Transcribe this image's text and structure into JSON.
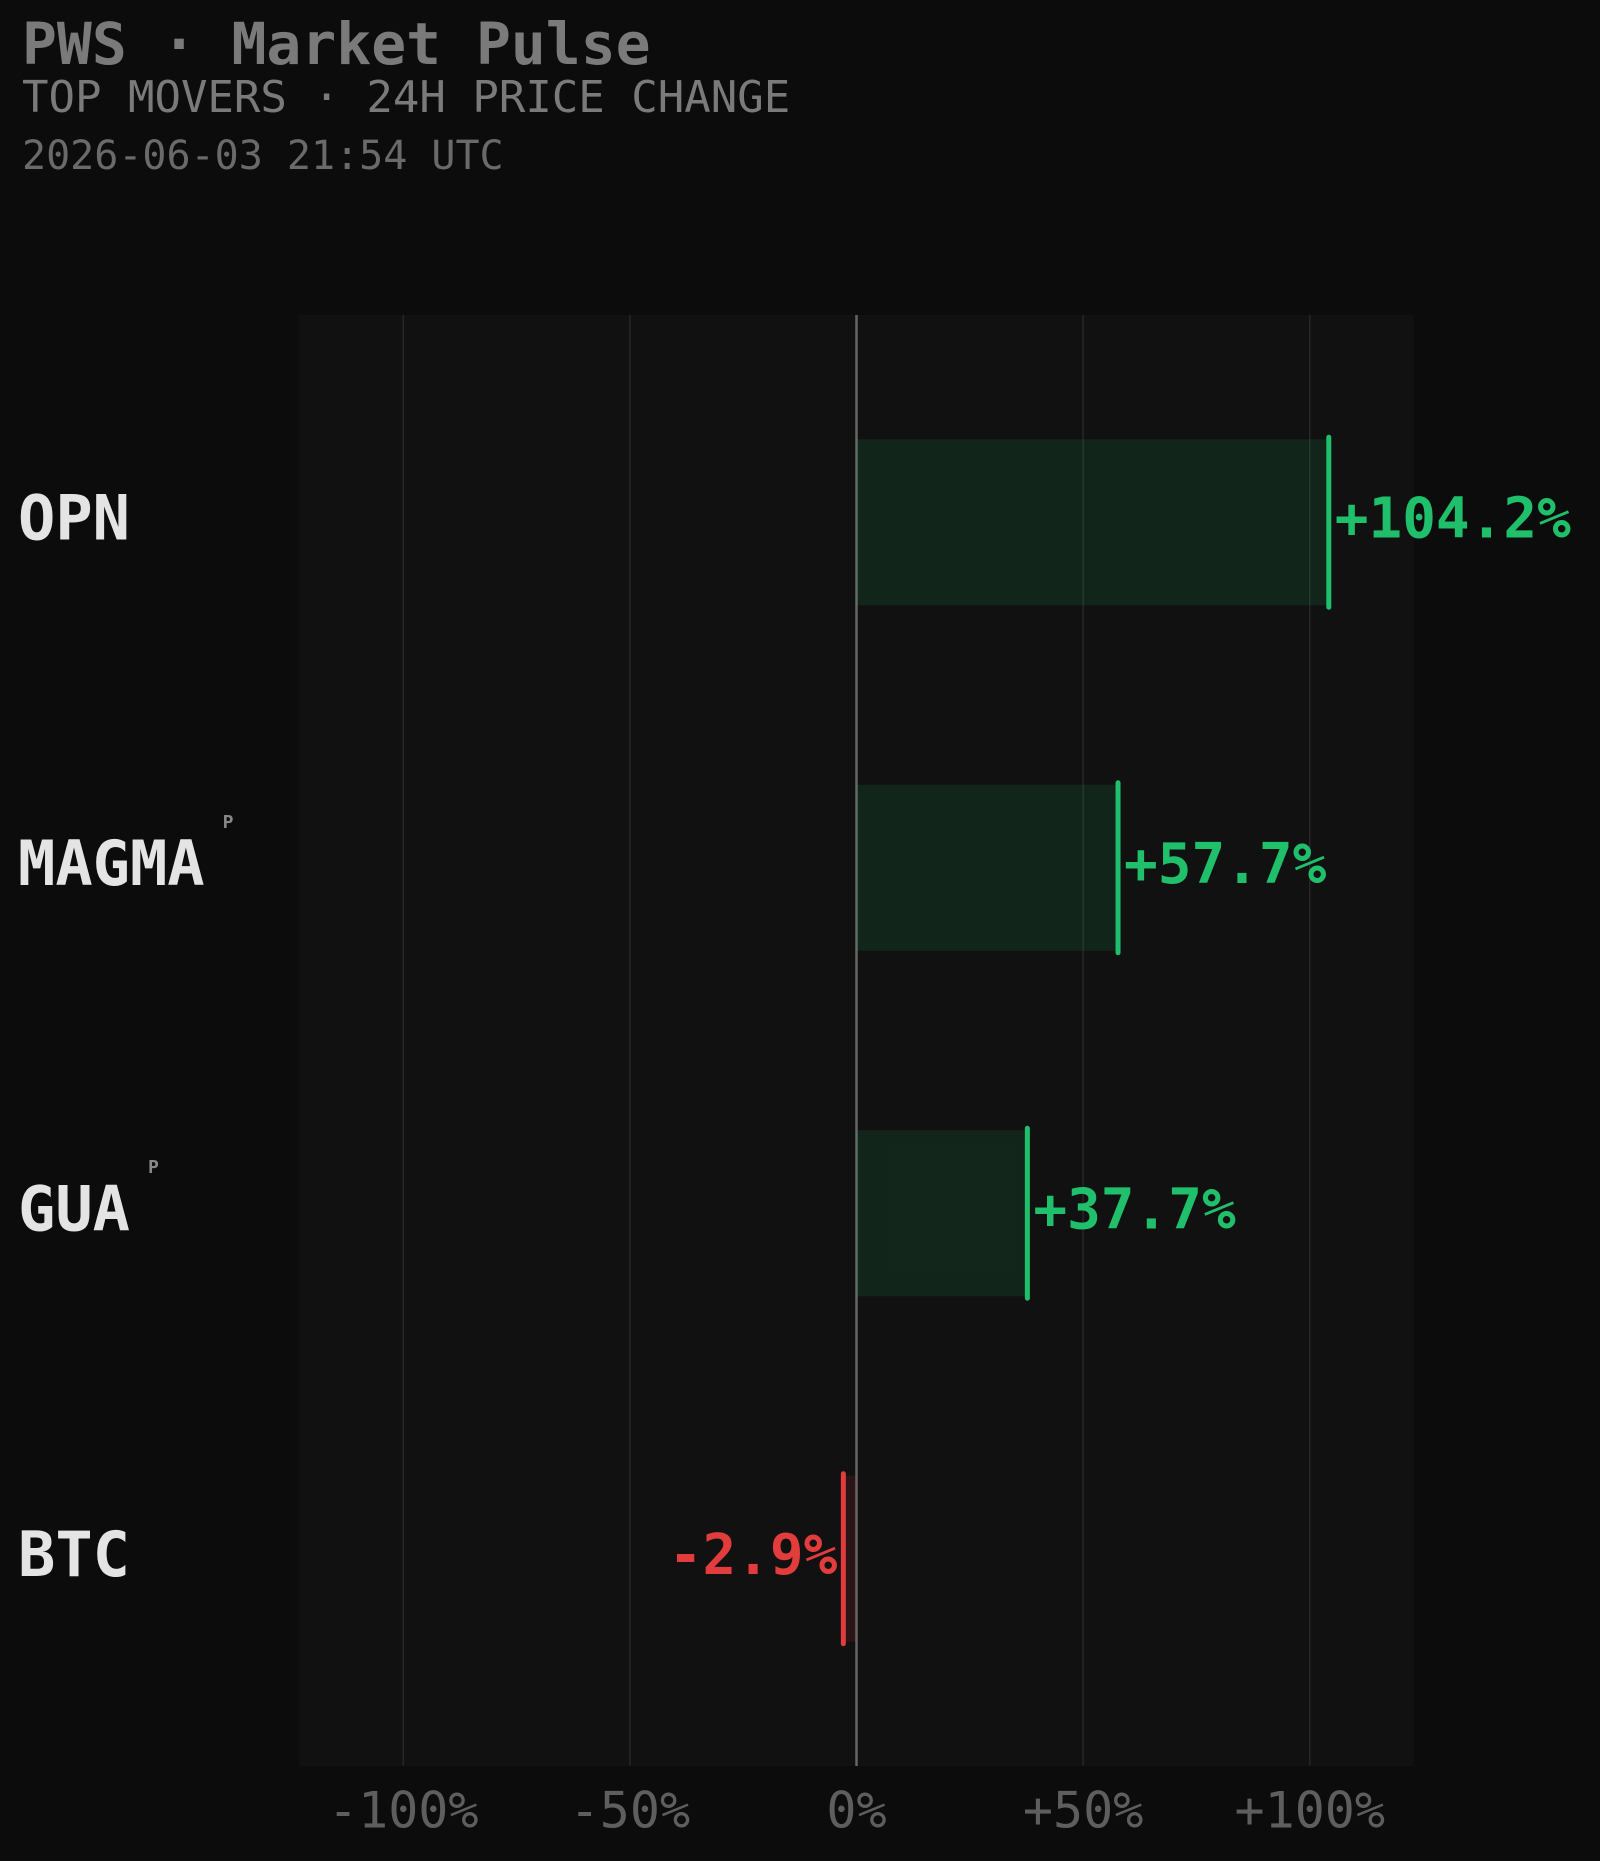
{
  "chart_data": {
    "type": "bar",
    "orientation": "horizontal",
    "title": "PWS · Market Pulse",
    "subtitle": "TOP MOVERS · 24H PRICE CHANGE",
    "timestamp": "2026-06-03 21:54 UTC",
    "categories": [
      "OPN",
      "MAGMA",
      "GUA",
      "BTC"
    ],
    "badges": [
      null,
      "P",
      "P",
      null
    ],
    "values": [
      104.2,
      57.7,
      37.7,
      -2.9
    ],
    "value_labels": [
      "+104.2%",
      "+57.7%",
      "+37.7%",
      "-2.9%"
    ],
    "positive_color": "#1fbf6c",
    "negative_color": "#e23c3c",
    "xlim": [
      -123,
      123
    ],
    "xticks": [
      {
        "value": -100,
        "label": "-100%"
      },
      {
        "value": -50,
        "label": "-50%"
      },
      {
        "value": 0,
        "label": "0%"
      },
      {
        "value": 50,
        "label": "+50%"
      },
      {
        "value": 100,
        "label": "+100%"
      }
    ],
    "grid": true
  }
}
